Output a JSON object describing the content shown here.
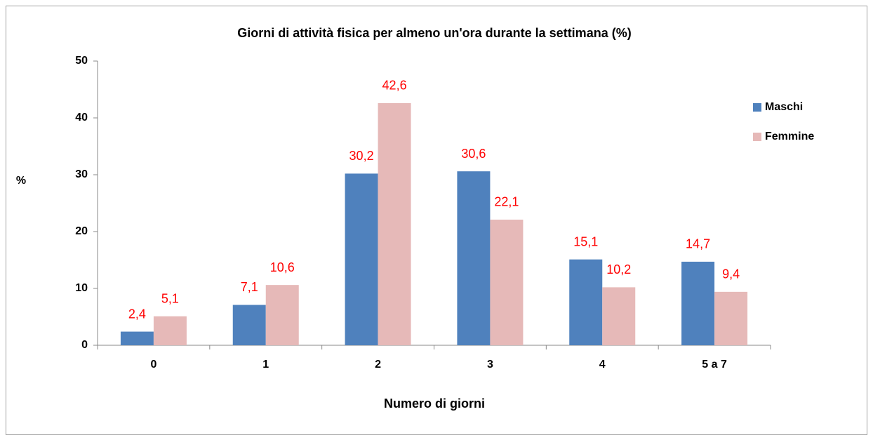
{
  "chart_data": {
    "type": "bar",
    "title": "Giorni di attività fisica per almeno un'ora durante la settimana (%)",
    "x_label": "Numero di giorni",
    "y_label": "%",
    "categories": [
      "0",
      "1",
      "2",
      "3",
      "4",
      "5 a 7"
    ],
    "series": [
      {
        "name": "Maschi",
        "color": "#4f81bd",
        "values": [
          2.4,
          7.1,
          30.2,
          30.6,
          15.1,
          14.7
        ],
        "value_labels": [
          "2,4",
          "7,1",
          "30,2",
          "30,6",
          "15,1",
          "14,7"
        ]
      },
      {
        "name": "Femmine",
        "color": "#e6b9b8",
        "values": [
          5.1,
          10.6,
          42.6,
          22.1,
          10.2,
          9.4
        ],
        "value_labels": [
          "5,1",
          "10,6",
          "42,6",
          "22,1",
          "10,2",
          "9,4"
        ]
      }
    ],
    "value_label_color": "#ff0000",
    "ylim": [
      0,
      50
    ],
    "yticks": [
      0,
      10,
      20,
      30,
      40,
      50
    ],
    "legend": "right"
  }
}
